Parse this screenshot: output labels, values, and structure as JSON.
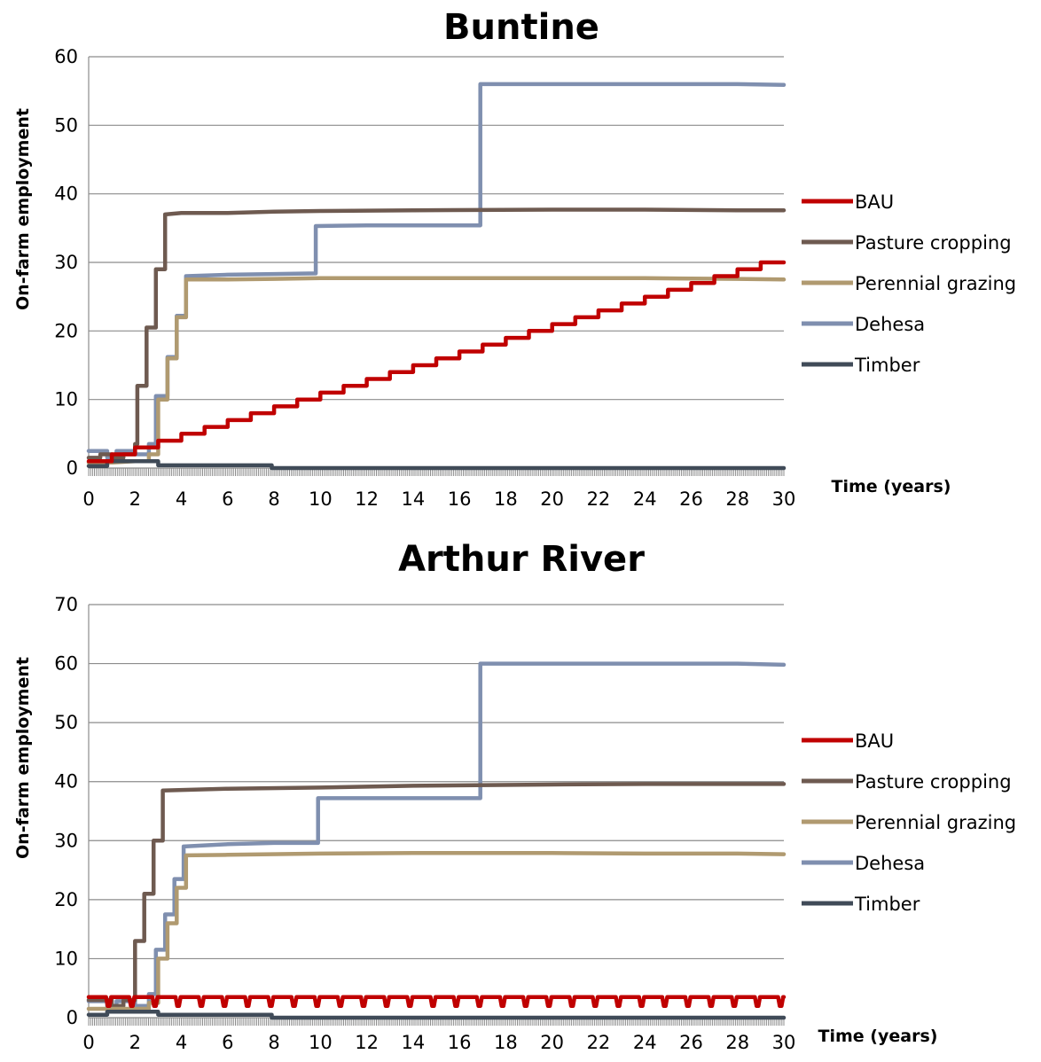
{
  "chart_data": [
    {
      "type": "line",
      "title": "Buntine",
      "xlabel": "Time (years)",
      "ylabel": "On-farm employment",
      "xlim": [
        0,
        30
      ],
      "ylim": [
        0,
        60
      ],
      "xticks": [
        0,
        2,
        4,
        6,
        8,
        10,
        12,
        14,
        16,
        18,
        20,
        22,
        24,
        26,
        28,
        30
      ],
      "yticks": [
        0,
        10,
        20,
        30,
        40,
        50,
        60
      ],
      "grid": "horizontal",
      "legend_position": "right",
      "series": [
        {
          "name": "BAU",
          "color": "#C00000",
          "points": [
            [
              0,
              1
            ],
            [
              1,
              1
            ],
            [
              1,
              2
            ],
            [
              2,
              2
            ],
            [
              2,
              3
            ],
            [
              3,
              3
            ],
            [
              3,
              4
            ],
            [
              4,
              4
            ],
            [
              4,
              5
            ],
            [
              5,
              5
            ],
            [
              5,
              6
            ],
            [
              6,
              6
            ],
            [
              6,
              7
            ],
            [
              7,
              7
            ],
            [
              7,
              8
            ],
            [
              8,
              8
            ],
            [
              8,
              9
            ],
            [
              9,
              9
            ],
            [
              9,
              10
            ],
            [
              10,
              10
            ],
            [
              10,
              11
            ],
            [
              11,
              11
            ],
            [
              11,
              12
            ],
            [
              12,
              12
            ],
            [
              12,
              13
            ],
            [
              13,
              13
            ],
            [
              13,
              14
            ],
            [
              14,
              14
            ],
            [
              14,
              15
            ],
            [
              15,
              15
            ],
            [
              15,
              16
            ],
            [
              16,
              16
            ],
            [
              16,
              17
            ],
            [
              17,
              17
            ],
            [
              17,
              18
            ],
            [
              18,
              18
            ],
            [
              18,
              19
            ],
            [
              19,
              19
            ],
            [
              19,
              20
            ],
            [
              20,
              20
            ],
            [
              20,
              21
            ],
            [
              21,
              21
            ],
            [
              21,
              22
            ],
            [
              22,
              22
            ],
            [
              22,
              23
            ],
            [
              23,
              23
            ],
            [
              23,
              24
            ],
            [
              24,
              24
            ],
            [
              24,
              25
            ],
            [
              25,
              25
            ],
            [
              25,
              26
            ],
            [
              26,
              26
            ],
            [
              26,
              27
            ],
            [
              27,
              27
            ],
            [
              27,
              28
            ],
            [
              28,
              28
            ],
            [
              28,
              29
            ],
            [
              29,
              29
            ],
            [
              29,
              30
            ],
            [
              30,
              30
            ]
          ]
        },
        {
          "name": "Pasture cropping",
          "color": "#6E5A50",
          "points": [
            [
              0,
              1.5
            ],
            [
              0.5,
              1.5
            ],
            [
              0.5,
              2
            ],
            [
              1,
              2
            ],
            [
              1,
              1.5
            ],
            [
              1.5,
              1.5
            ],
            [
              1.5,
              2
            ],
            [
              2,
              2
            ],
            [
              2,
              3.5
            ],
            [
              2.1,
              3.5
            ],
            [
              2.1,
              12
            ],
            [
              2.5,
              12
            ],
            [
              2.5,
              20.5
            ],
            [
              2.9,
              20.5
            ],
            [
              2.9,
              29
            ],
            [
              3.3,
              29
            ],
            [
              3.3,
              37
            ],
            [
              4,
              37.2
            ],
            [
              6,
              37.2
            ],
            [
              8,
              37.4
            ],
            [
              10,
              37.5
            ],
            [
              14,
              37.6
            ],
            [
              20,
              37.7
            ],
            [
              24,
              37.7
            ],
            [
              28,
              37.6
            ],
            [
              30,
              37.6
            ]
          ]
        },
        {
          "name": "Perennial grazing",
          "color": "#B09A70",
          "points": [
            [
              0,
              0.8
            ],
            [
              1,
              0.8
            ],
            [
              2,
              1
            ],
            [
              2.6,
              1
            ],
            [
              2.6,
              2
            ],
            [
              3,
              2
            ],
            [
              3,
              10
            ],
            [
              3.4,
              10
            ],
            [
              3.4,
              16
            ],
            [
              3.8,
              16
            ],
            [
              3.8,
              22
            ],
            [
              4.2,
              22
            ],
            [
              4.2,
              27.5
            ],
            [
              6,
              27.5
            ],
            [
              8,
              27.6
            ],
            [
              10,
              27.7
            ],
            [
              14,
              27.7
            ],
            [
              20,
              27.7
            ],
            [
              24,
              27.7
            ],
            [
              28,
              27.6
            ],
            [
              30,
              27.5
            ]
          ]
        },
        {
          "name": "Dehesa",
          "color": "#7F8FAF",
          "points": [
            [
              0,
              2.5
            ],
            [
              0.8,
              2.5
            ],
            [
              0.8,
              1.5
            ],
            [
              1.2,
              1.5
            ],
            [
              1.2,
              2.5
            ],
            [
              2,
              2.5
            ],
            [
              2,
              2
            ],
            [
              2.6,
              2
            ],
            [
              2.6,
              3.5
            ],
            [
              2.9,
              3.5
            ],
            [
              2.9,
              10.5
            ],
            [
              3.4,
              10.5
            ],
            [
              3.4,
              16.2
            ],
            [
              3.8,
              16.2
            ],
            [
              3.8,
              22.2
            ],
            [
              4.2,
              22.2
            ],
            [
              4.2,
              28
            ],
            [
              6,
              28.2
            ],
            [
              8,
              28.3
            ],
            [
              9.8,
              28.4
            ],
            [
              9.8,
              35.3
            ],
            [
              12,
              35.4
            ],
            [
              14,
              35.4
            ],
            [
              16.9,
              35.4
            ],
            [
              16.9,
              56
            ],
            [
              20,
              56
            ],
            [
              24,
              56
            ],
            [
              28,
              56
            ],
            [
              30,
              55.9
            ]
          ]
        },
        {
          "name": "Timber",
          "color": "#404B58",
          "points": [
            [
              0,
              0.3
            ],
            [
              0.8,
              0.3
            ],
            [
              0.8,
              1
            ],
            [
              3,
              1
            ],
            [
              3,
              0.4
            ],
            [
              7.9,
              0.4
            ],
            [
              7.9,
              0
            ],
            [
              30,
              0
            ]
          ]
        }
      ]
    },
    {
      "type": "line",
      "title": "Arthur River",
      "xlabel": "Time (years)",
      "ylabel": "On-farm employment",
      "xlim": [
        0,
        30
      ],
      "ylim": [
        0,
        70
      ],
      "xticks": [
        0,
        2,
        4,
        6,
        8,
        10,
        12,
        14,
        16,
        18,
        20,
        22,
        24,
        26,
        28,
        30
      ],
      "yticks": [
        0,
        10,
        20,
        30,
        40,
        50,
        60,
        70
      ],
      "grid": "horizontal",
      "legend_position": "right",
      "series": [
        {
          "name": "BAU",
          "color": "#C00000",
          "points": [
            [
              0,
              3.5
            ],
            [
              30,
              3.5
            ]
          ],
          "annual_dip_to": 2
        },
        {
          "name": "Pasture cropping",
          "color": "#6E5A50",
          "points": [
            [
              0,
              3
            ],
            [
              1,
              3
            ],
            [
              1,
              2
            ],
            [
              1.5,
              2
            ],
            [
              1.5,
              3
            ],
            [
              2,
              3
            ],
            [
              2,
              13
            ],
            [
              2.4,
              13
            ],
            [
              2.4,
              21
            ],
            [
              2.8,
              21
            ],
            [
              2.8,
              30
            ],
            [
              3.2,
              30
            ],
            [
              3.2,
              38.5
            ],
            [
              6,
              38.8
            ],
            [
              10,
              39
            ],
            [
              14,
              39.3
            ],
            [
              20,
              39.5
            ],
            [
              24,
              39.6
            ],
            [
              28,
              39.6
            ],
            [
              30,
              39.6
            ]
          ]
        },
        {
          "name": "Perennial grazing",
          "color": "#B09A70",
          "points": [
            [
              0,
              1.5
            ],
            [
              1,
              1.5
            ],
            [
              2,
              1.5
            ],
            [
              2.6,
              1.5
            ],
            [
              2.6,
              2.5
            ],
            [
              3,
              2.5
            ],
            [
              3,
              10
            ],
            [
              3.4,
              10
            ],
            [
              3.4,
              16
            ],
            [
              3.8,
              16
            ],
            [
              3.8,
              22
            ],
            [
              4.2,
              22
            ],
            [
              4.2,
              27.5
            ],
            [
              6,
              27.6
            ],
            [
              10,
              27.8
            ],
            [
              14,
              27.9
            ],
            [
              20,
              27.9
            ],
            [
              24,
              27.8
            ],
            [
              28,
              27.8
            ],
            [
              30,
              27.7
            ]
          ]
        },
        {
          "name": "Dehesa",
          "color": "#7F8FAF",
          "points": [
            [
              0,
              2.8
            ],
            [
              0.8,
              2.8
            ],
            [
              0.8,
              2
            ],
            [
              1.2,
              2
            ],
            [
              1.2,
              2.8
            ],
            [
              2,
              2.8
            ],
            [
              2,
              2
            ],
            [
              2.6,
              2
            ],
            [
              2.6,
              4
            ],
            [
              2.9,
              4
            ],
            [
              2.9,
              11.5
            ],
            [
              3.3,
              11.5
            ],
            [
              3.3,
              17.5
            ],
            [
              3.7,
              17.5
            ],
            [
              3.7,
              23.5
            ],
            [
              4.1,
              23.5
            ],
            [
              4.1,
              29
            ],
            [
              6,
              29.4
            ],
            [
              8,
              29.6
            ],
            [
              9.9,
              29.6
            ],
            [
              9.9,
              37.2
            ],
            [
              12,
              37.2
            ],
            [
              14,
              37.2
            ],
            [
              16.9,
              37.2
            ],
            [
              16.9,
              60
            ],
            [
              20,
              60
            ],
            [
              24,
              60
            ],
            [
              28,
              60
            ],
            [
              30,
              59.8
            ]
          ]
        },
        {
          "name": "Timber",
          "color": "#404B58",
          "points": [
            [
              0,
              0.5
            ],
            [
              0.8,
              0.5
            ],
            [
              0.8,
              1
            ],
            [
              3,
              1
            ],
            [
              3,
              0.5
            ],
            [
              7.9,
              0.5
            ],
            [
              7.9,
              0
            ],
            [
              30,
              0
            ]
          ]
        }
      ]
    }
  ],
  "legend": {
    "items": [
      {
        "label": "BAU",
        "color": "#C00000"
      },
      {
        "label": "Pasture cropping",
        "color": "#6E5A50"
      },
      {
        "label": "Perennial grazing",
        "color": "#B09A70"
      },
      {
        "label": "Dehesa",
        "color": "#7F8FAF"
      },
      {
        "label": "Timber",
        "color": "#404B58"
      }
    ]
  }
}
